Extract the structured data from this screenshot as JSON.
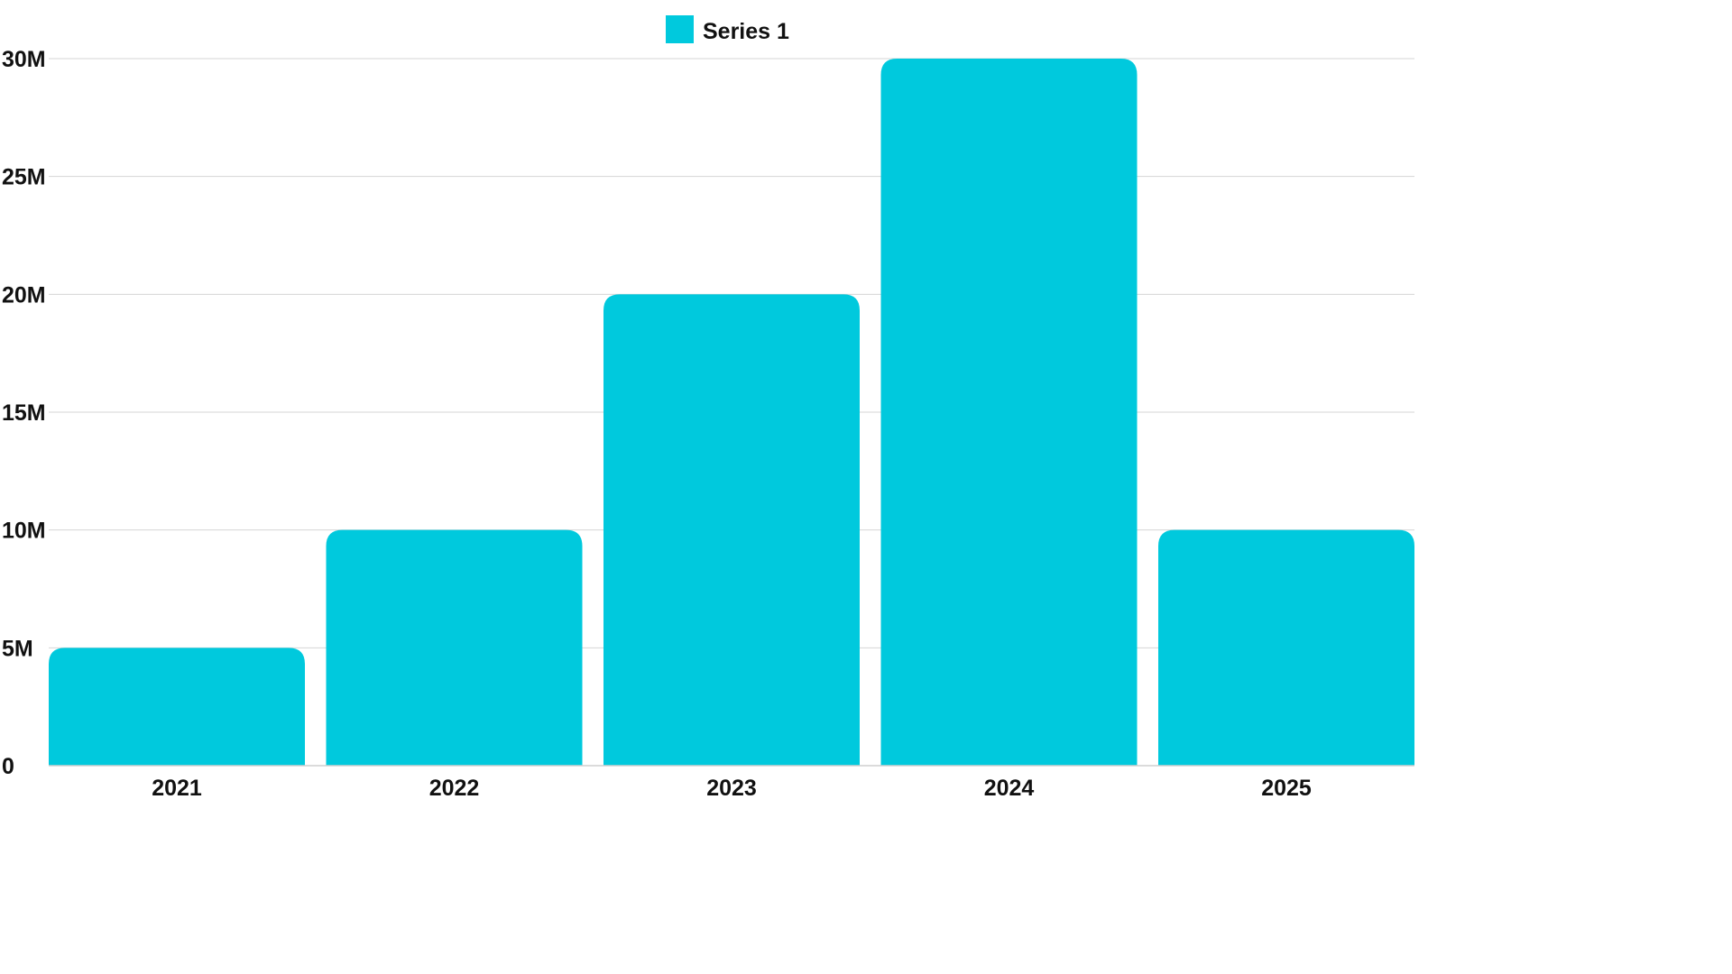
{
  "chart_data": {
    "type": "bar",
    "categories": [
      "2021",
      "2022",
      "2023",
      "2024",
      "2025"
    ],
    "series": [
      {
        "name": "Series 1",
        "values": [
          5000000,
          10000000,
          20000000,
          30000000,
          10000000
        ],
        "color": "#00C9DD"
      }
    ],
    "ylim": [
      0,
      30000000
    ],
    "yticks": [
      0,
      5000000,
      10000000,
      15000000,
      20000000,
      25000000,
      30000000
    ],
    "ytick_labels": [
      "0",
      "5M",
      "10M",
      "15M",
      "20M",
      "25M",
      "30M"
    ],
    "grid": true,
    "legend": "top-center"
  }
}
